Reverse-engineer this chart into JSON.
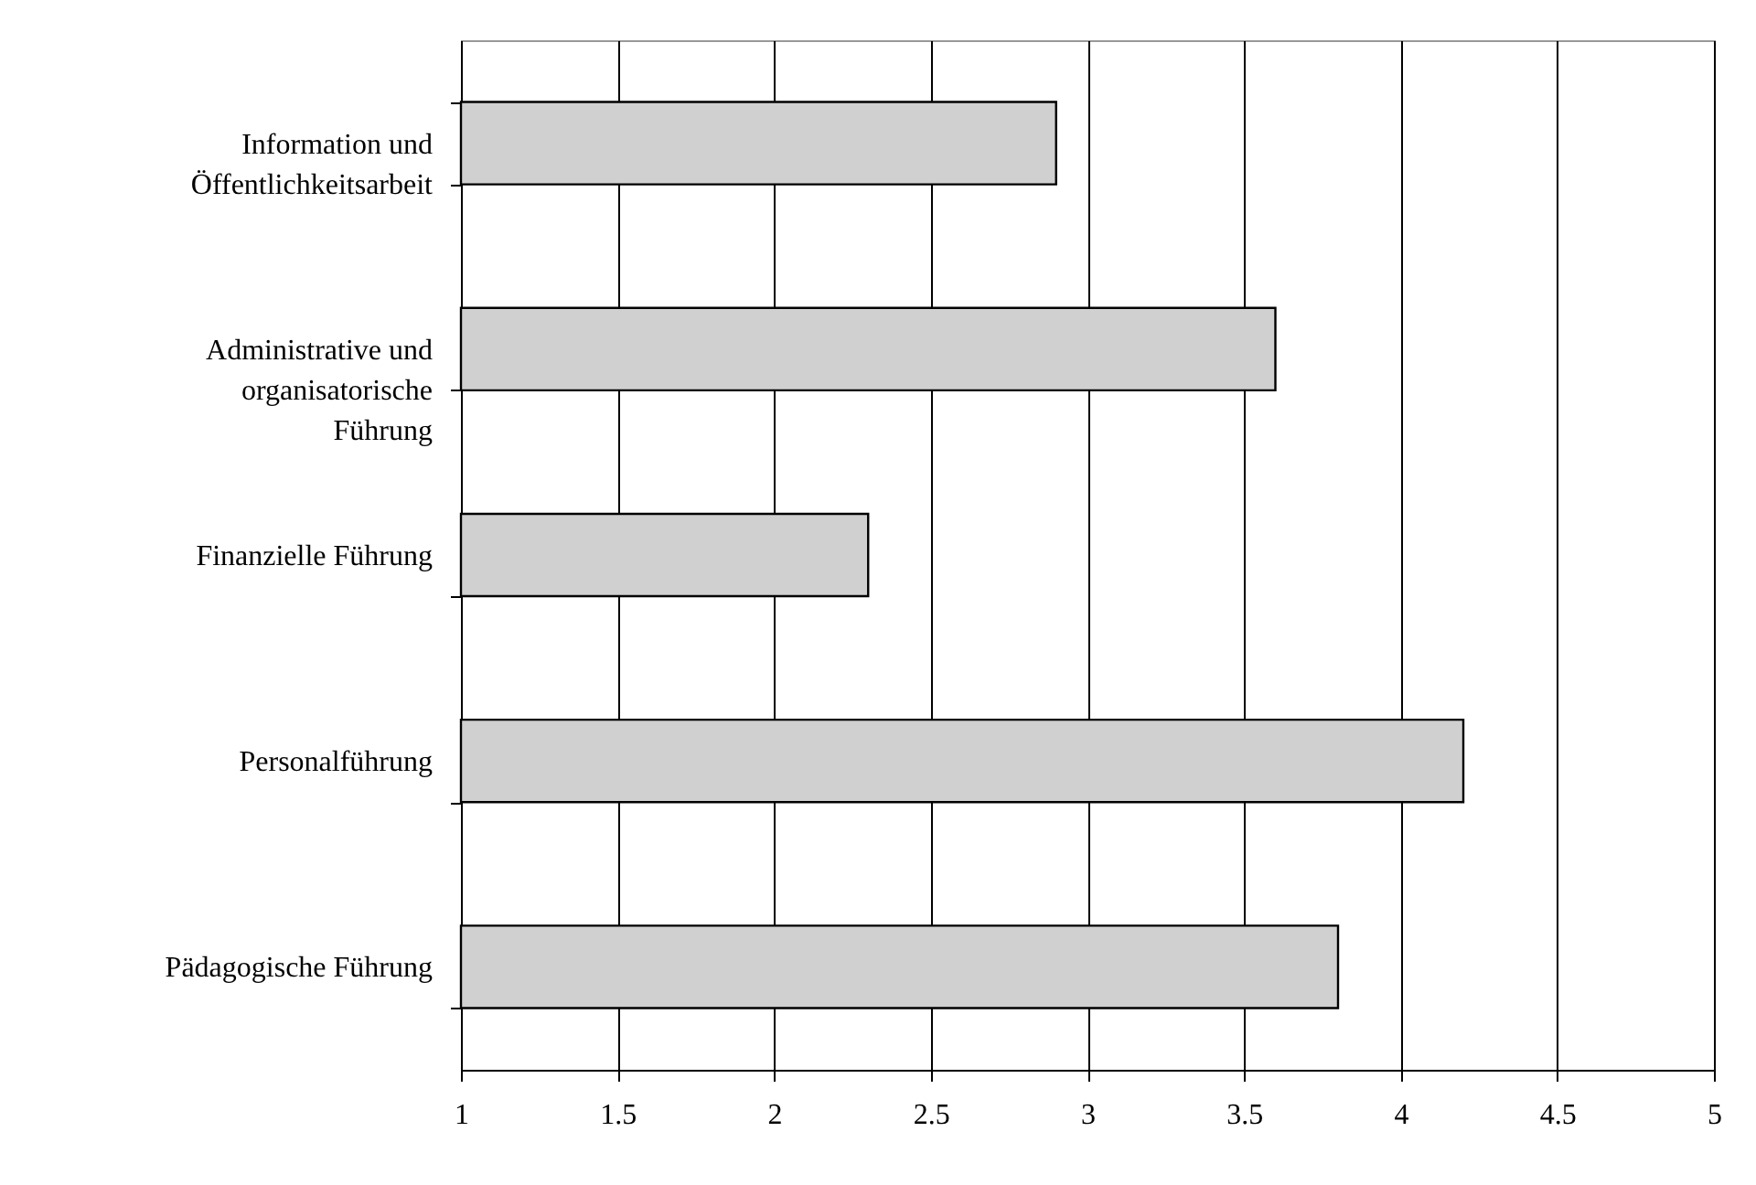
{
  "chart_data": {
    "type": "bar",
    "orientation": "horizontal",
    "categories": [
      "Information und Öffentlichkeitsarbeit",
      "Administrative und organisatorische Führung",
      "Finanzielle Führung",
      "Personalführung",
      "Pädagogische Führung"
    ],
    "values": [
      2.9,
      3.6,
      2.3,
      4.2,
      3.8
    ],
    "color": "#d0d0d0",
    "xlim": [
      1,
      5
    ],
    "xticks": [
      1,
      1.5,
      2,
      2.5,
      3,
      3.5,
      4,
      4.5,
      5
    ],
    "grid": "x"
  }
}
